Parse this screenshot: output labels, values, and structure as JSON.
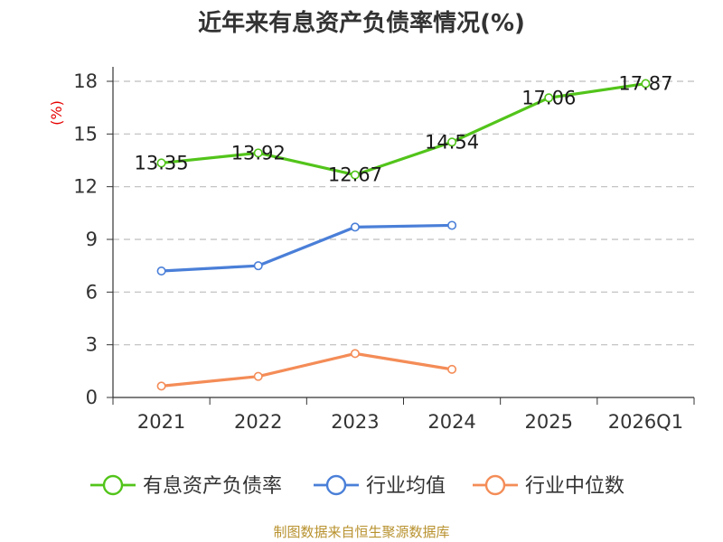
{
  "chart_data": {
    "type": "line",
    "title": "近年来有息资产负债率情况(%)",
    "ylabel": "(%)",
    "xlabel": "",
    "categories": [
      "2021",
      "2022",
      "2023",
      "2024",
      "2025",
      "2026Q1"
    ],
    "ylim": [
      0,
      18
    ],
    "yticks": [
      0,
      3,
      6,
      9,
      12,
      15,
      18
    ],
    "grid": true,
    "legend_position": "bottom",
    "series": [
      {
        "name": "有息资产负债率",
        "color": "#52c41a",
        "values": [
          13.35,
          13.92,
          12.67,
          14.54,
          17.06,
          17.87
        ],
        "labels": [
          "13.35",
          "13.92",
          "12.67",
          "14.54",
          "17.06",
          "17.87"
        ]
      },
      {
        "name": "行业均值",
        "color": "#4a7fd8",
        "values": [
          7.2,
          7.5,
          9.7,
          9.8,
          null,
          null
        ]
      },
      {
        "name": "行业中位数",
        "color": "#f48c57",
        "values": [
          0.65,
          1.2,
          2.5,
          1.6,
          null,
          null
        ]
      }
    ]
  },
  "footer": {
    "source": "制图数据来自恒生聚源数据库"
  }
}
